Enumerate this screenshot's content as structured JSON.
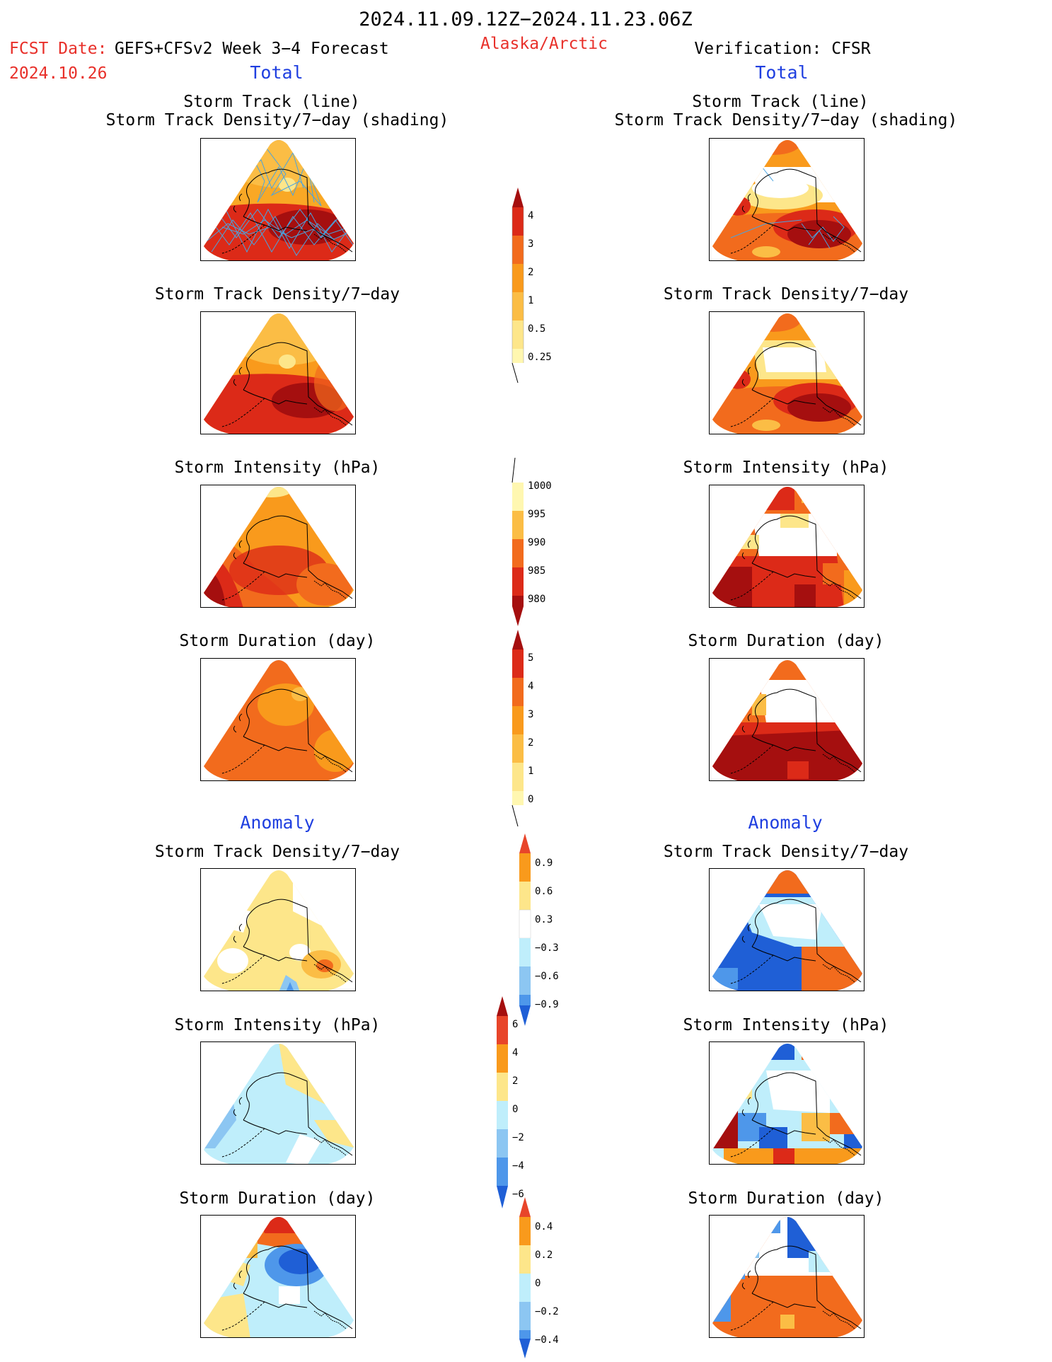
{
  "header": {
    "period": "2024.11.09.12Z−2024.11.23.06Z",
    "fcst_prefix": "FCST Date:",
    "fcst_model": "GEFS+CFSv2 Week 3−4 Forecast",
    "fcst_date": "2024.10.26",
    "region": "Alaska/Arctic",
    "verification": "Verification: CFSR"
  },
  "columns": {
    "left_total": "Total",
    "right_total": "Total",
    "left_anomaly": "Anomaly",
    "right_anomaly": "Anomaly"
  },
  "titles": {
    "track_line": "Storm Track (line)",
    "track_shading": "Storm Track Density/7−day (shading)",
    "density": "Storm Track Density/7−day",
    "intensity": "Storm Intensity (hPa)",
    "duration": "Storm Duration (day)"
  },
  "colors": {
    "pale_yellow": "#fff7b0",
    "yellow": "#fde68a",
    "light_orange": "#fbbd45",
    "orange": "#f99a1c",
    "dark_orange": "#f26b1d",
    "red": "#dc2a18",
    "dark_red": "#a50f0f",
    "light_blue": "#bfeefb",
    "mid_blue": "#8cc6f2",
    "blue": "#4e97ea",
    "dark_blue": "#1f5fd6",
    "track_line": "#4aa3df"
  },
  "colorbars": [
    {
      "name": "density-total",
      "labels": [
        "4",
        "3",
        "2",
        "1",
        "0.5",
        "0.25"
      ]
    },
    {
      "name": "intensity-total",
      "labels": [
        "1000",
        "995",
        "990",
        "985",
        "980"
      ]
    },
    {
      "name": "duration-total",
      "labels": [
        "5",
        "4",
        "3",
        "2",
        "1",
        "0"
      ]
    },
    {
      "name": "density-anomaly",
      "labels": [
        "0.9",
        "0.6",
        "0.3",
        "−0.3",
        "−0.6",
        "−0.9"
      ]
    },
    {
      "name": "intensity-anomaly",
      "labels": [
        "6",
        "4",
        "2",
        "0",
        "−2",
        "−4",
        "−6"
      ]
    },
    {
      "name": "duration-anomaly",
      "labels": [
        "0.4",
        "0.2",
        "0",
        "−0.2",
        "−0.4"
      ]
    }
  ]
}
